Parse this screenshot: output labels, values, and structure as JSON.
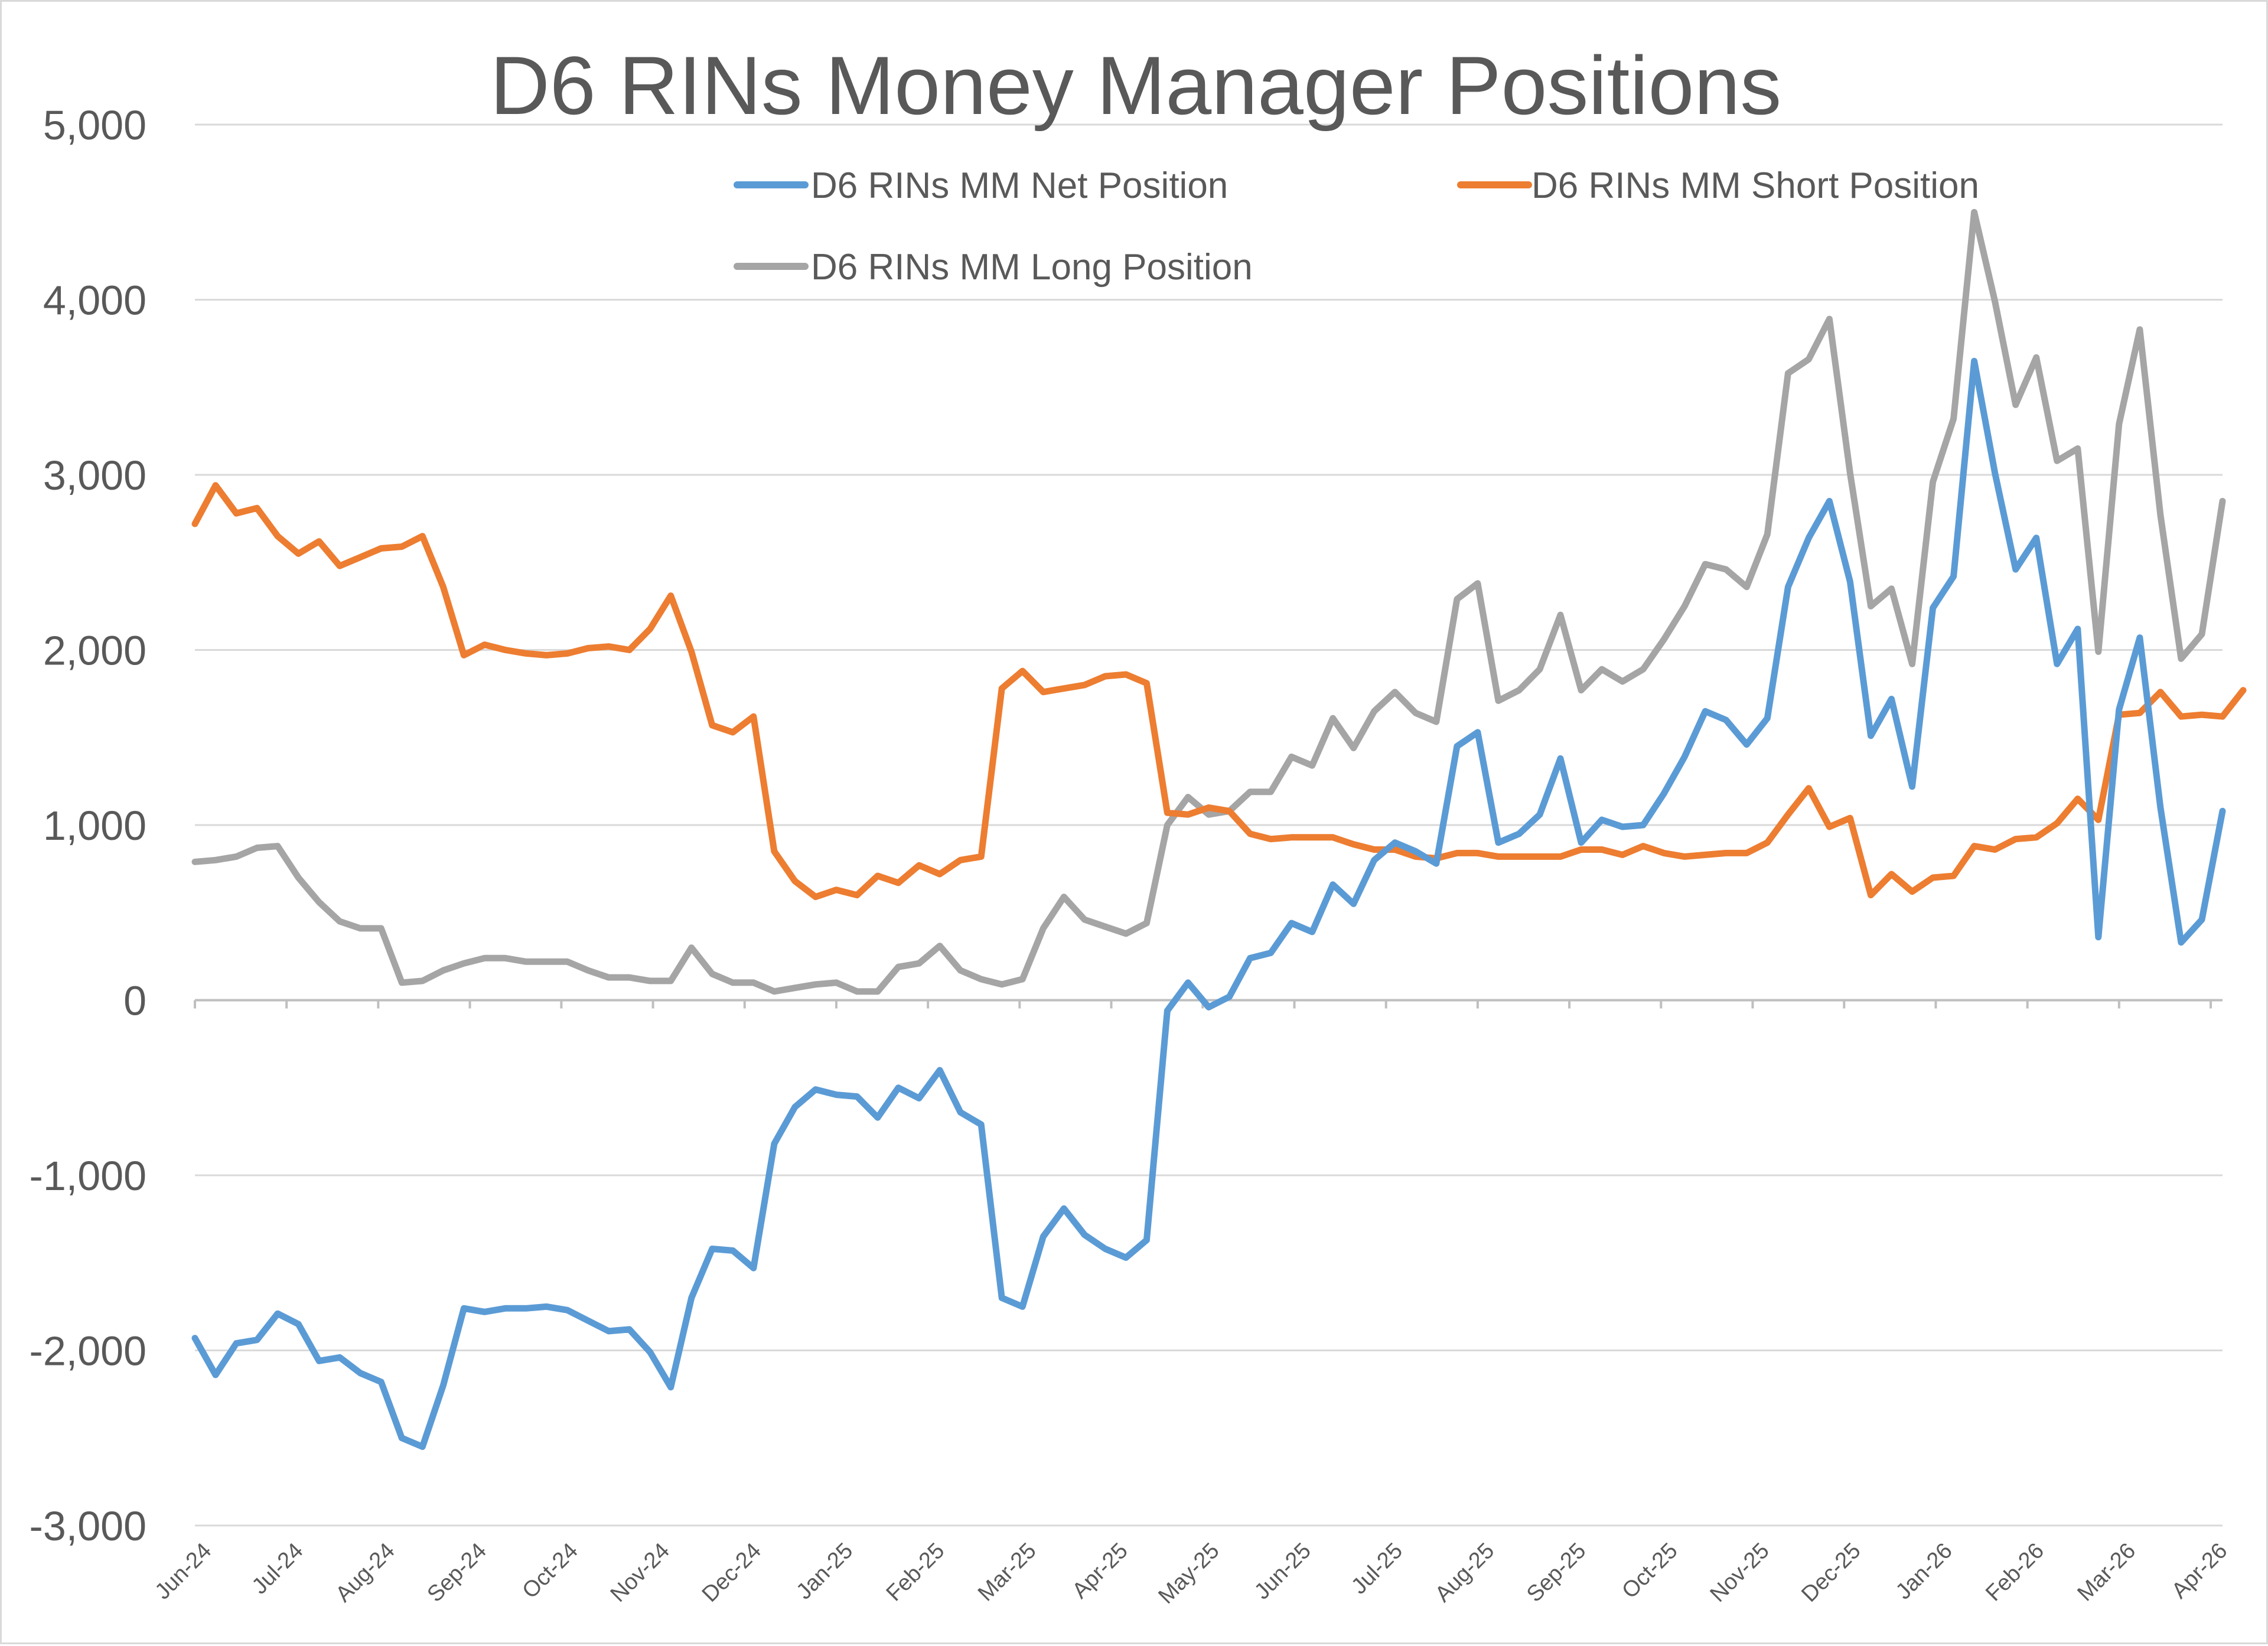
{
  "chart_data": {
    "type": "line",
    "title": "D6 RINs Money Manager Positions",
    "xlabel": "",
    "ylabel": "",
    "ylim": [
      -3000,
      5000
    ],
    "y_ticks": [
      "5,000",
      "4,000",
      "3,000",
      "2,000",
      "1,000",
      "0",
      "-1,000",
      "-2,000",
      "-3,000"
    ],
    "y_tick_values": [
      5000,
      4000,
      3000,
      2000,
      1000,
      0,
      -1000,
      -2000,
      -3000
    ],
    "x_ticks": [
      "Jun-24",
      "Jul-24",
      "Aug-24",
      "Sep-24",
      "Oct-24",
      "Nov-24",
      "Dec-24",
      "Jan-25",
      "Feb-25",
      "Mar-25",
      "Apr-25",
      "May-25",
      "Jun-25",
      "Jul-25",
      "Aug-25",
      "Sep-25",
      "Oct-25",
      "Nov-25",
      "Dec-25",
      "Jan-26",
      "Feb-26",
      "Mar-26",
      "Apr-26"
    ],
    "x_tick_week_index": [
      0,
      4.43,
      8.86,
      13.29,
      17.71,
      22.14,
      26.57,
      31,
      35.43,
      39.86,
      44.29,
      48.71,
      53.14,
      57.57,
      62,
      66.43,
      70.86,
      75.29,
      79.71,
      84.14,
      88.57,
      93,
      97.43
    ],
    "grid": true,
    "legend_position": "top",
    "colors": {
      "net": "#5b9bd5",
      "short": "#ed7d31",
      "long": "#a5a5a5",
      "grid": "#d9d9d9",
      "axis": "#bfbfbf",
      "text": "#595959"
    },
    "series": [
      {
        "name": "D6 RINs MM Net Position",
        "color": "#5b9bd5",
        "values": [
          -1930,
          -2140,
          -1960,
          -1940,
          -1790,
          -1850,
          -2060,
          -2040,
          -2130,
          -2180,
          -2500,
          -2550,
          -2200,
          -1760,
          -1780,
          -1760,
          -1760,
          -1750,
          -1770,
          -1830,
          -1890,
          -1880,
          -2010,
          -2210,
          -1700,
          -1420,
          -1430,
          -1530,
          -820,
          -610,
          -510,
          -540,
          -550,
          -670,
          -500,
          -560,
          -400,
          -640,
          -710,
          -1700,
          -1750,
          -1350,
          -1190,
          -1340,
          -1420,
          -1470,
          -1370,
          -60,
          100,
          -40,
          20,
          240,
          270,
          440,
          390,
          660,
          550,
          800,
          900,
          850,
          780,
          1450,
          1530,
          900,
          950,
          1060,
          1380,
          900,
          1030,
          990,
          1000,
          1180,
          1390,
          1650,
          1600,
          1460,
          1610,
          2360,
          2640,
          2850,
          2390,
          1510,
          1720,
          1220,
          2240,
          2420,
          3650,
          3010,
          2460,
          2640,
          1920,
          2120,
          360,
          1660,
          2070,
          1100,
          330,
          460,
          1080
        ]
      },
      {
        "name": "D6 RINs MM Short Position",
        "color": "#ed7d31",
        "values": [
          2720,
          2940,
          2780,
          2810,
          2650,
          2550,
          2620,
          2480,
          2530,
          2580,
          2590,
          2650,
          2360,
          1970,
          2030,
          2000,
          1980,
          1970,
          1980,
          2010,
          2020,
          2000,
          2120,
          2310,
          1990,
          1570,
          1530,
          1620,
          850,
          680,
          590,
          630,
          600,
          710,
          670,
          770,
          720,
          800,
          820,
          1780,
          1880,
          1760,
          1780,
          1800,
          1850,
          1860,
          1810,
          1070,
          1060,
          1100,
          1080,
          950,
          920,
          930,
          930,
          930,
          890,
          860,
          860,
          820,
          810,
          840,
          840,
          820,
          820,
          820,
          820,
          860,
          860,
          830,
          880,
          840,
          820,
          830,
          840,
          840,
          900,
          1060,
          1210,
          990,
          1040,
          600,
          720,
          620,
          700,
          710,
          880,
          860,
          920,
          930,
          1010,
          1150,
          1030,
          1630,
          1640,
          1760,
          1620,
          1630,
          1620,
          1770
        ]
      },
      {
        "name": "D6 RINs MM Long Position",
        "color": "#a5a5a5",
        "values": [
          790,
          800,
          820,
          870,
          880,
          700,
          560,
          450,
          410,
          410,
          100,
          110,
          170,
          210,
          240,
          240,
          220,
          220,
          220,
          170,
          130,
          130,
          110,
          110,
          300,
          150,
          100,
          100,
          50,
          70,
          90,
          100,
          50,
          50,
          190,
          210,
          310,
          170,
          120,
          90,
          120,
          410,
          590,
          460,
          420,
          380,
          440,
          1000,
          1160,
          1060,
          1080,
          1190,
          1190,
          1390,
          1340,
          1610,
          1440,
          1650,
          1760,
          1640,
          1590,
          2290,
          2380,
          1710,
          1770,
          1890,
          2200,
          1770,
          1890,
          1820,
          1890,
          2060,
          2250,
          2490,
          2460,
          2360,
          2660,
          3580,
          3660,
          3890,
          3010,
          2250,
          2350,
          1920,
          2960,
          3320,
          4500,
          3990,
          3400,
          3670,
          3080,
          3150,
          1990,
          3290,
          3830,
          2770,
          1950,
          2090,
          2850
        ]
      }
    ]
  }
}
